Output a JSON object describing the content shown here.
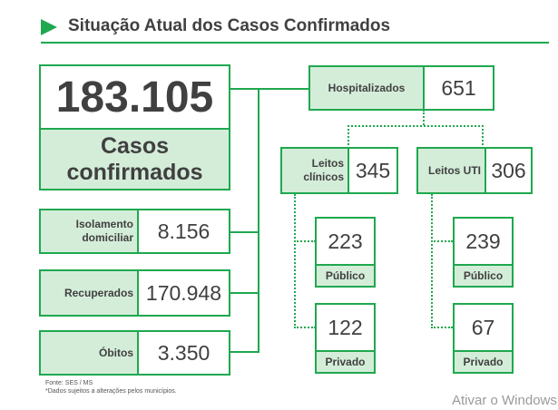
{
  "title": "Situação Atual dos Casos Confirmados",
  "total": {
    "value": "183.105",
    "label": "Casos confirmados"
  },
  "left_boxes": [
    {
      "label": "Isolamento domiciliar",
      "value": "8.156"
    },
    {
      "label": "Recuperados",
      "value": "170.948"
    },
    {
      "label": "Óbitos",
      "value": "3.350"
    }
  ],
  "hospitalizados": {
    "label": "Hospitalizados",
    "value": "651"
  },
  "leitos_clinicos": {
    "label": "Leitos clínicos",
    "value": "345",
    "publico": {
      "value": "223",
      "label": "Público"
    },
    "privado": {
      "value": "122",
      "label": "Privado"
    }
  },
  "leitos_uti": {
    "label": "Leitos UTI",
    "value": "306",
    "publico": {
      "value": "239",
      "label": "Público"
    },
    "privado": {
      "value": "67",
      "label": "Privado"
    }
  },
  "source": {
    "line1": "Fonte: SES / MS",
    "line2": "*Dados sujeitos a alterações pelos municípios."
  },
  "watermark": "Ativar o Windows",
  "colors": {
    "accent": "#1fa84f",
    "fill": "#d4edd9",
    "text": "#404040"
  }
}
